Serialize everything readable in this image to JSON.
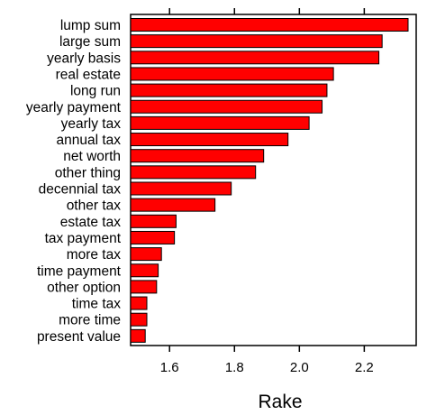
{
  "chart_data": {
    "type": "bar",
    "orientation": "horizontal",
    "categories": [
      "lump sum",
      "large sum",
      "yearly basis",
      "real estate",
      "long run",
      "yearly payment",
      "yearly tax",
      "annual tax",
      "net worth",
      "other thing",
      "decennial tax",
      "other tax",
      "estate tax",
      "tax payment",
      "more tax",
      "time payment",
      "other option",
      "time tax",
      "more time",
      "present value"
    ],
    "values": [
      2.335,
      2.255,
      2.245,
      2.105,
      2.085,
      2.07,
      2.03,
      1.965,
      1.89,
      1.865,
      1.79,
      1.74,
      1.62,
      1.615,
      1.575,
      1.565,
      1.56,
      1.53,
      1.53,
      1.525
    ],
    "xlabel": "Rake",
    "ylabel": "",
    "xlim": [
      1.48,
      2.36
    ],
    "xticks": [
      1.6,
      1.8,
      2.0,
      2.2
    ],
    "xtick_labels": [
      "1.6",
      "1.8",
      "2.0",
      "2.2"
    ],
    "grid": false,
    "colors": {
      "bar_fill": "#ff0000",
      "bar_stroke": "#000000"
    }
  }
}
